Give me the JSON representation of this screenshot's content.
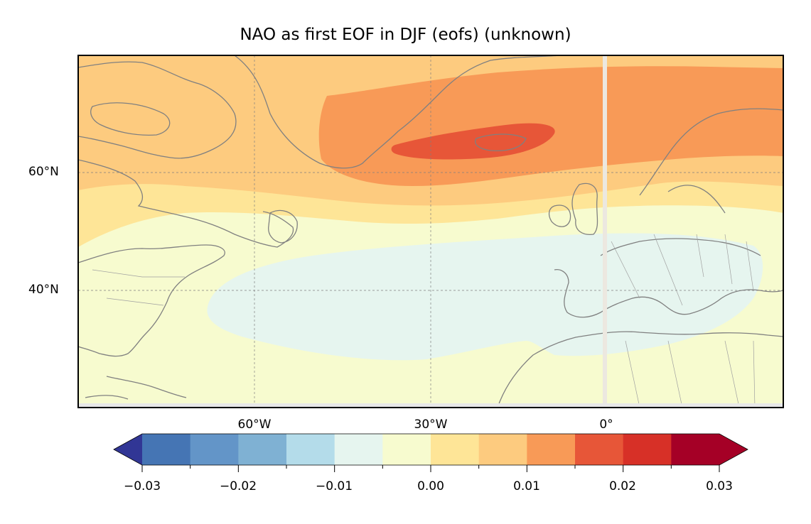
{
  "title": "NAO as first EOF in DJF (eofs) (unknown)",
  "map": {
    "projection": "PlateCarree",
    "lat_labels": [
      "60°N",
      "40°N"
    ],
    "lon_labels": [
      "60°W",
      "30°W",
      "0°"
    ],
    "gridlines": true,
    "coastline_color": "#808080"
  },
  "colorbar": {
    "orientation": "horizontal",
    "extend": "both",
    "tick_labels": [
      "−0.03",
      "−0.02",
      "−0.01",
      "0.00",
      "0.01",
      "0.02",
      "0.03"
    ],
    "levels": [
      -0.03,
      -0.025,
      -0.02,
      -0.015,
      -0.01,
      -0.005,
      0.0,
      0.005,
      0.01,
      0.015,
      0.02,
      0.025,
      0.03
    ],
    "under_color": "#313695",
    "over_color": "#a50026",
    "colors": [
      "#4575b4",
      "#6395c8",
      "#7fb1d3",
      "#b4dcea",
      "#e6f5ef",
      "#f7fbcf",
      "#fee597",
      "#fdcb7f",
      "#f89a57",
      "#e75638",
      "#d73027",
      "#a50026"
    ]
  },
  "field_colors": {
    "neg_0_005": "#e6f5ef",
    "pos_0_000": "#f7fbcf",
    "pos_0_005": "#fee597",
    "pos_0_010": "#fdcb7f",
    "pos_0_015": "#f89a57",
    "pos_0_020": "#e75638"
  }
}
